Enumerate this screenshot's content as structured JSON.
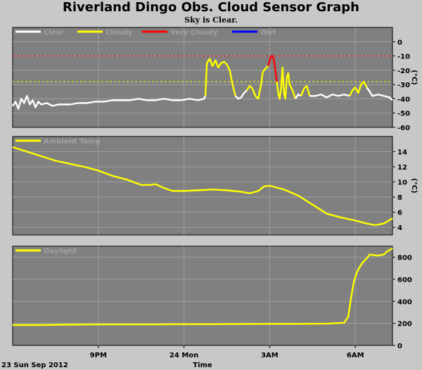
{
  "header": {
    "title": "Riverland Dingo Obs. Cloud Sensor Graph",
    "subtitle": "Sky is Clear."
  },
  "colors": {
    "background": "#c8c8c8",
    "panel": "#808080",
    "grid": "#9e9e9e",
    "clear": "#ffffff",
    "cloudy": "#ffff00",
    "very_cloudy": "#ff0000",
    "wet": "#0000ff",
    "limit_very_cloudy": "#ff0000",
    "limit_cloudy": "#ffff00"
  },
  "x_axis": {
    "label": "Time",
    "start_label": "23 Sun Sep 2012",
    "range_hours": [
      18.0,
      31.3
    ],
    "ticks": [
      {
        "hour": 21,
        "label": "9PM"
      },
      {
        "hour": 24,
        "label": "24 Mon"
      },
      {
        "hour": 27,
        "label": "3AM"
      },
      {
        "hour": 30,
        "label": "6AM"
      }
    ]
  },
  "chart_data": [
    {
      "type": "line",
      "name": "cloud",
      "unit": "(°C)",
      "ylim": [
        -60,
        10
      ],
      "yticks": [
        0,
        -10,
        -20,
        -30,
        -40,
        -50,
        -60
      ],
      "grid": true,
      "legend": [
        "Clear",
        "Cloudy",
        "Very Cloudy",
        "Wet"
      ],
      "thresholds": [
        {
          "value": -10,
          "color": "#ff0000"
        },
        {
          "value": -28,
          "color": "#ffff00"
        }
      ],
      "series": [
        {
          "name": "Clear",
          "color": "#ffffff",
          "x": [
            18.0,
            18.1,
            18.2,
            18.3,
            18.4,
            18.5,
            18.6,
            18.7,
            18.8,
            18.9,
            19.0,
            19.2,
            19.4,
            19.6,
            19.8,
            20.0,
            20.3,
            20.6,
            20.9,
            21.2,
            21.5,
            21.8,
            22.1,
            22.4,
            22.7,
            23.0,
            23.3,
            23.6,
            23.9,
            24.2,
            24.5,
            24.7,
            24.75
          ],
          "y": [
            -45,
            -42,
            -47,
            -40,
            -43,
            -38,
            -44,
            -41,
            -46,
            -42,
            -44,
            -43,
            -45,
            -44,
            -44,
            -44,
            -43,
            -43,
            -42,
            -42,
            -41,
            -41,
            -41,
            -40,
            -41,
            -41,
            -40,
            -41,
            -41,
            -40,
            -41,
            -40,
            -38
          ]
        },
        {
          "name": "Cloudy",
          "color": "#ffff00",
          "x": [
            24.75,
            24.8,
            24.9,
            25.0,
            25.1,
            25.2,
            25.3,
            25.4,
            25.5,
            25.6,
            25.7,
            25.8
          ],
          "y": [
            -38,
            -15,
            -12,
            -17,
            -13,
            -18,
            -15,
            -14,
            -16,
            -20,
            -30,
            -38
          ]
        },
        {
          "name": "Clear",
          "color": "#ffffff",
          "x": [
            25.8,
            25.9,
            26.0,
            26.1,
            26.2
          ],
          "y": [
            -38,
            -40,
            -39,
            -36,
            -34
          ]
        },
        {
          "name": "Cloudy",
          "color": "#ffff00",
          "x": [
            26.2,
            26.3,
            26.4,
            26.5,
            26.6,
            26.7
          ],
          "y": [
            -34,
            -31,
            -33,
            -38,
            -40,
            -30
          ]
        },
        {
          "name": "Cloudy",
          "color": "#ffff00",
          "x": [
            26.7,
            26.75,
            26.8,
            26.85,
            26.9,
            26.95
          ],
          "y": [
            -30,
            -22,
            -20,
            -19,
            -18,
            -17
          ]
        },
        {
          "name": "Very Cloudy",
          "color": "#ff0000",
          "x": [
            26.95,
            27.0,
            27.05,
            27.1,
            27.15,
            27.2,
            27.25
          ],
          "y": [
            -17,
            -13,
            -10,
            -10,
            -13,
            -20,
            -28
          ]
        },
        {
          "name": "Cloudy",
          "color": "#ffff00",
          "x": [
            27.25,
            27.3,
            27.35,
            27.4,
            27.45,
            27.5,
            27.55,
            27.6,
            27.65,
            27.7,
            27.8,
            27.9
          ],
          "y": [
            -28,
            -36,
            -40,
            -32,
            -18,
            -36,
            -40,
            -25,
            -22,
            -30,
            -34,
            -40
          ]
        },
        {
          "name": "Clear",
          "color": "#ffffff",
          "x": [
            27.9,
            28.0,
            28.1
          ],
          "y": [
            -40,
            -37,
            -38
          ]
        },
        {
          "name": "Cloudy",
          "color": "#ffff00",
          "x": [
            28.1,
            28.2,
            28.3,
            28.4
          ],
          "y": [
            -38,
            -33,
            -31,
            -38
          ]
        },
        {
          "name": "Clear",
          "color": "#ffffff",
          "x": [
            28.4,
            28.6,
            28.8,
            29.0,
            29.2,
            29.4,
            29.6,
            29.8
          ],
          "y": [
            -38,
            -38,
            -37,
            -39,
            -37,
            -38,
            -37,
            -38
          ]
        },
        {
          "name": "Cloudy",
          "color": "#ffff00",
          "x": [
            29.8,
            29.9,
            30.0,
            30.1,
            30.2,
            30.3,
            30.4
          ],
          "y": [
            -38,
            -34,
            -32,
            -36,
            -30,
            -28,
            -32
          ]
        },
        {
          "name": "Clear",
          "color": "#ffffff",
          "x": [
            30.4,
            30.6,
            30.8,
            31.0,
            31.2,
            31.3
          ],
          "y": [
            -32,
            -38,
            -37,
            -38,
            -39,
            -41
          ]
        }
      ]
    },
    {
      "type": "line",
      "name": "ambient",
      "unit": "(°C)",
      "ylim": [
        3,
        16
      ],
      "yticks": [
        4,
        6,
        8,
        10,
        12,
        14
      ],
      "grid": true,
      "legend": [
        "Ambient Temp"
      ],
      "series": [
        {
          "name": "Ambient Temp",
          "color": "#ffff00",
          "x": [
            18.0,
            18.5,
            19.0,
            19.5,
            20.0,
            20.5,
            21.0,
            21.5,
            22.0,
            22.5,
            22.8,
            23.0,
            23.3,
            23.6,
            24.0,
            24.5,
            25.0,
            25.5,
            26.0,
            26.3,
            26.6,
            26.8,
            27.0,
            27.5,
            28.0,
            28.5,
            29.0,
            29.5,
            30.0,
            30.4,
            30.7,
            31.0,
            31.3
          ],
          "y": [
            14.6,
            14.0,
            13.4,
            12.8,
            12.4,
            12.0,
            11.5,
            10.8,
            10.3,
            9.6,
            9.6,
            9.7,
            9.2,
            8.8,
            8.8,
            8.9,
            9.0,
            8.9,
            8.7,
            8.5,
            8.8,
            9.4,
            9.5,
            9.0,
            8.2,
            7.0,
            5.8,
            5.3,
            4.9,
            4.5,
            4.3,
            4.5,
            5.2
          ]
        }
      ]
    },
    {
      "type": "line",
      "name": "daylight",
      "unit": "",
      "ylim": [
        0,
        900
      ],
      "yticks": [
        0,
        200,
        400,
        600,
        800
      ],
      "grid": true,
      "legend": [
        "Daylight"
      ],
      "series": [
        {
          "name": "Daylight",
          "color": "#ffff00",
          "x": [
            18.0,
            19.0,
            20.0,
            21.0,
            22.0,
            23.0,
            24.0,
            25.0,
            26.0,
            27.0,
            28.0,
            29.0,
            29.6,
            29.75,
            29.85,
            29.95,
            30.05,
            30.15,
            30.25,
            30.4,
            30.5,
            30.6,
            30.8,
            31.0,
            31.1,
            31.2,
            31.3
          ],
          "y": [
            185,
            185,
            188,
            190,
            190,
            190,
            192,
            192,
            194,
            195,
            195,
            197,
            205,
            260,
            430,
            580,
            660,
            710,
            750,
            790,
            825,
            820,
            815,
            825,
            850,
            865,
            880
          ]
        }
      ]
    }
  ]
}
